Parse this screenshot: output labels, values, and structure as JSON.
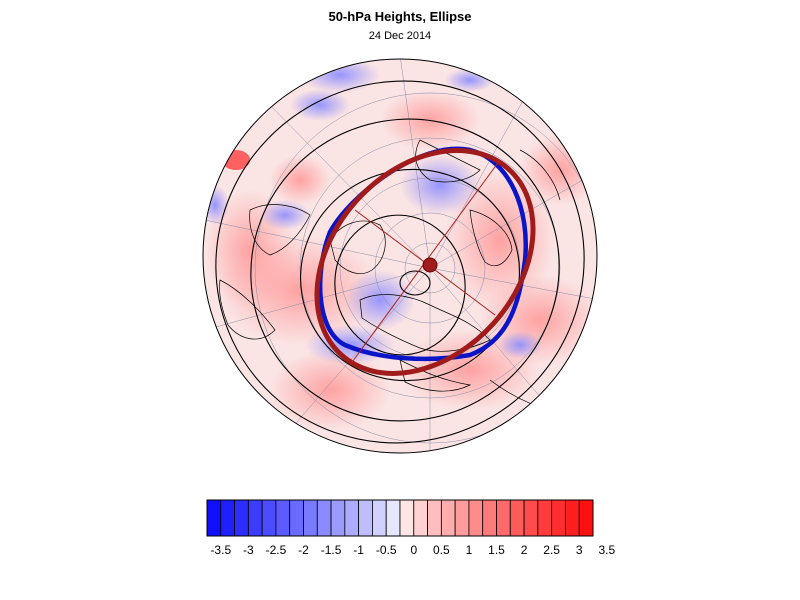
{
  "title": "50-hPa Heights, Ellipse",
  "date": "24 Dec 2014",
  "map": {
    "projection": "polar stereographic (north pole)",
    "shading": "height anomaly (blue negative, red positive)",
    "contours": "black height contours",
    "observed_vortex_edge_color": "#0a14c8",
    "fitted_ellipse_color": "#a01c1c",
    "ellipse_center_marker_color": "#a01c1c"
  },
  "colorbar": {
    "labels": [
      "-3.5",
      "-3",
      "-2.5",
      "-2",
      "-1.5",
      "-1",
      "-0.5",
      "0",
      "0.5",
      "1",
      "1.5",
      "2",
      "2.5",
      "3",
      "3.5"
    ],
    "negative_max_color": "#1010ff",
    "positive_max_color": "#ff1010",
    "neutral_color": "#ffffff"
  }
}
